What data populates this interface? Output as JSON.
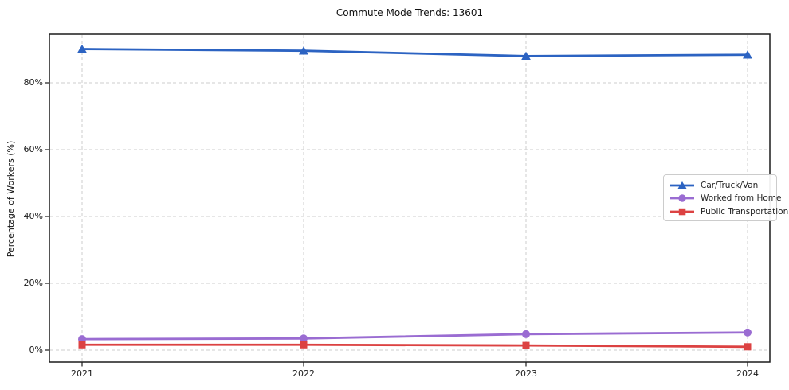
{
  "figure": {
    "title": "Commute Mode Trends: 13601",
    "ylabel": "Percentage of Workers (%)"
  },
  "chart_data": {
    "type": "line",
    "title": "Commute Mode Trends: 13601",
    "xlabel": "",
    "ylabel": "Percentage of Workers (%)",
    "categories": [
      "2021",
      "2022",
      "2023",
      "2024"
    ],
    "series": [
      {
        "name": "Car/Truck/Van",
        "color": "#2c63c2",
        "marker": "triangle",
        "values": [
          90.1,
          89.6,
          88.0,
          88.4
        ]
      },
      {
        "name": "Worked from Home",
        "color": "#9a6cd2",
        "marker": "circle",
        "values": [
          3.3,
          3.5,
          4.8,
          5.3
        ]
      },
      {
        "name": "Public Transportation",
        "color": "#dc4242",
        "marker": "square",
        "values": [
          1.6,
          1.6,
          1.4,
          1.0
        ]
      }
    ],
    "yticks": {
      "values": [
        0,
        20,
        40,
        60,
        80
      ],
      "labels": [
        "0%",
        "20%",
        "40%",
        "60%",
        "80%"
      ]
    },
    "ylim": [
      -3.6,
      94.5
    ],
    "grid": true,
    "grid_style": "dashed",
    "grid_color": "#cdcdcd",
    "spine_color": "#1c1c1c",
    "legend_position": "center-right"
  }
}
